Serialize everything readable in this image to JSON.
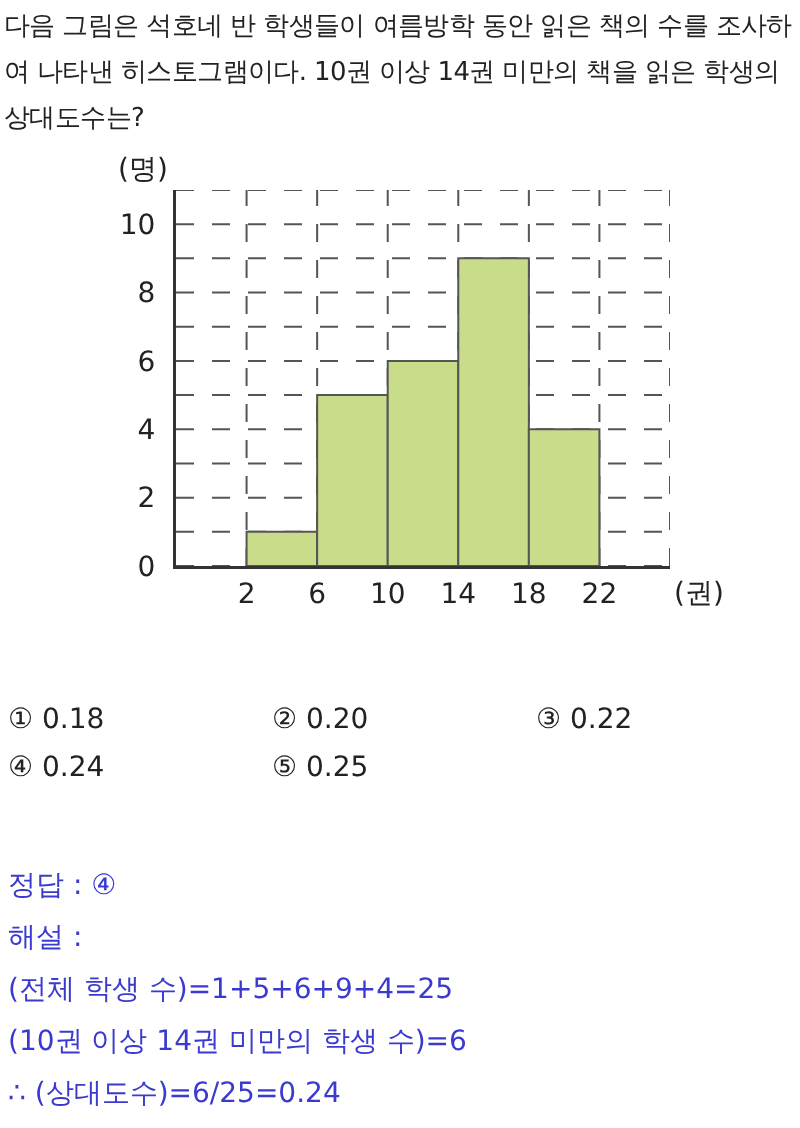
{
  "chart_data": {
    "type": "histogram",
    "title": "다음 그림은 석호네 반 학생들이 여름방학 동안 읽은 책의 수를 조사하여 나타낸 히스토그램이다. 10권 이상 14권 미만의 책을 읽은 학생의 상대도수는?",
    "xlabel": "(권)",
    "ylabel": "(명)",
    "bins": [
      2,
      6,
      10,
      14,
      18,
      22
    ],
    "values": [
      1,
      5,
      6,
      9,
      4
    ],
    "color": "#c8dc8a",
    "xlim": [
      -2,
      26
    ],
    "xticks": [
      2,
      6,
      10,
      14,
      18,
      22,
      {
        "value": 26,
        "label": null
      }
    ],
    "ylim": [
      0,
      11
    ],
    "yticks": [
      0,
      {
        "value": 1,
        "label": null
      },
      2,
      {
        "value": 3,
        "label": null
      },
      4,
      {
        "value": 5,
        "label": null
      },
      6,
      {
        "value": 7,
        "label": null
      },
      8,
      {
        "value": 9,
        "label": null
      },
      10,
      {
        "value": 11,
        "label": null
      }
    ],
    "grid": true,
    "line_style": "dashed",
    "annotations": [
      "① 0.18",
      "② 0.20",
      "③ 0.22",
      "④ 0.24",
      "⑤ 0.25",
      "정답 : ④",
      "해설 :",
      "(전체 학생 수)=1+5+6+9+4=25",
      "(10권 이상 14권 미만의 학생 수)=6",
      "∴ (상대도수)=6/25=0.24"
    ]
  }
}
